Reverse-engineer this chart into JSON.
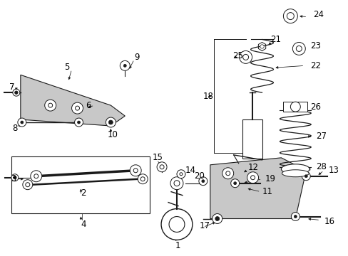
{
  "bg_color": "#ffffff",
  "line_color": "#1a1a1a",
  "fill_color": "#c8c8c8",
  "label_color": "#000000",
  "fig_width": 4.89,
  "fig_height": 3.6,
  "dpi": 100
}
